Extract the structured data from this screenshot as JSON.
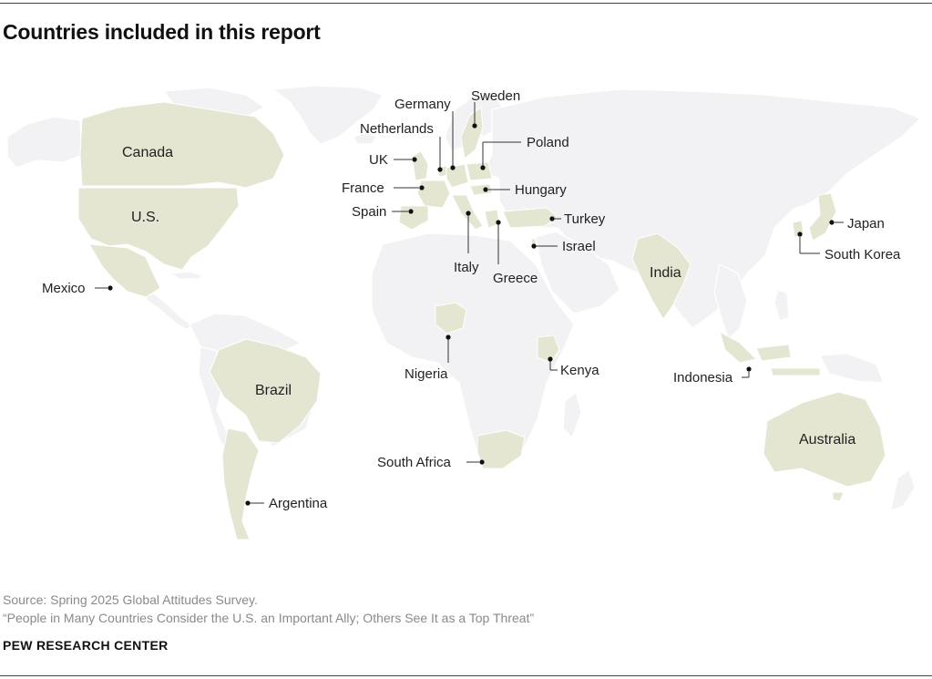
{
  "title": "Countries included in this report",
  "source": "Source: Spring 2025 Global Attitudes Survey.",
  "report_title": "“People in Many Countries Consider the U.S. an Important Ally; Others See It as a Top Threat”",
  "brand": "PEW RESEARCH CENTER",
  "colors": {
    "highlight": "#e4e6d1",
    "land": "#f2f2f5",
    "text": "#222222",
    "muted": "#8a8a8a"
  },
  "countries": {
    "canada": "Canada",
    "us": "U.S.",
    "mexico": "Mexico",
    "brazil": "Brazil",
    "argentina": "Argentina",
    "uk": "UK",
    "france": "France",
    "spain": "Spain",
    "netherlands": "Netherlands",
    "germany": "Germany",
    "sweden": "Sweden",
    "poland": "Poland",
    "hungary": "Hungary",
    "italy": "Italy",
    "greece": "Greece",
    "turkey": "Turkey",
    "israel": "Israel",
    "nigeria": "Nigeria",
    "kenya": "Kenya",
    "south_africa": "South Africa",
    "india": "India",
    "japan": "Japan",
    "south_korea": "South Korea",
    "indonesia": "Indonesia",
    "australia": "Australia"
  }
}
